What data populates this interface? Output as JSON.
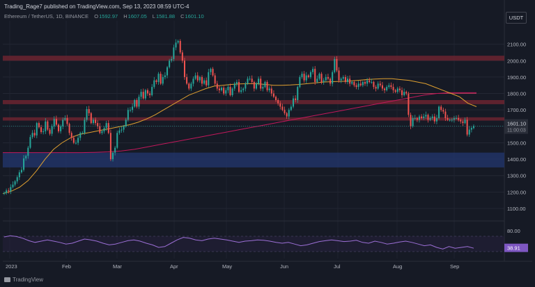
{
  "header": {
    "published": "Trading_Rage7 published on TradingView.com, Sep 13, 2023 08:59 UTC-4",
    "symbol": "Ethereum / TetherUS, 1D, BINANCE",
    "ohlc": [
      {
        "k": "O",
        "v": "1592.97"
      },
      {
        "k": "H",
        "v": "1607.05"
      },
      {
        "k": "L",
        "v": "1581.88"
      },
      {
        "k": "C",
        "v": "1601.10"
      }
    ],
    "currency": "USDT"
  },
  "chart_data": {
    "type": "candlestick",
    "price_axis": {
      "ylim": [
        1100,
        2200
      ],
      "ticks": [
        "2100.00",
        "2000.00",
        "1900.00",
        "1800.00",
        "1700.00",
        "1600.00",
        "1500.00",
        "1400.00",
        "1300.00",
        "1200.00",
        "1100.00"
      ]
    },
    "x_labels": [
      "2023",
      "Feb",
      "Mar",
      "Apr",
      "May",
      "Jun",
      "Jul",
      "Aug",
      "Sep"
    ],
    "last_price_label": "1601.10",
    "countdown_label": "11:00:03",
    "zones": [
      {
        "kind": "resistance",
        "from": 2000,
        "to": 2030,
        "color": "#6b2530"
      },
      {
        "kind": "resistance",
        "from": 1735,
        "to": 1760,
        "color": "#6b2530"
      },
      {
        "kind": "resistance",
        "from": 1635,
        "to": 1655,
        "color": "#6b2530"
      },
      {
        "kind": "support",
        "from": 1350,
        "to": 1440,
        "color": "#213466"
      }
    ],
    "level_line": {
      "value": 1800,
      "from_month": "Aug"
    },
    "candles_close_series": [
      [
        1195,
        1210,
        1205,
        1230,
        1245,
        1265,
        1290,
        1320,
        1335,
        1405,
        1420,
        1470,
        1535,
        1560,
        1545,
        1620,
        1595,
        1565,
        1570,
        1630,
        1580,
        1555,
        1600,
        1645,
        1610,
        1570,
        1600,
        1640,
        1650,
        1615,
        1560,
        1530,
        1500,
        1500,
        1530,
        1560,
        1560,
        1640,
        1705,
        1680,
        1620,
        1640,
        1620,
        1600,
        1560,
        1570,
        1590,
        1620,
        1560,
        1400,
        1440,
        1470,
        1560,
        1575,
        1580,
        1600,
        1640,
        1700,
        1700,
        1720,
        1760,
        1720,
        1780,
        1810,
        1770,
        1820,
        1800,
        1790,
        1840,
        1880,
        1870,
        1920,
        1860,
        1900,
        1910,
        1960,
        2000,
        2010,
        2080,
        2110,
        2120,
        2050,
        2000,
        1900,
        1860,
        1830,
        1860,
        1890,
        1910,
        1880,
        1900,
        1860,
        1880,
        1850,
        1930,
        1950,
        1910,
        1860,
        1830,
        1820,
        1835,
        1800,
        1820,
        1840,
        1790,
        1830,
        1860,
        1870,
        1810,
        1820,
        1830,
        1860,
        1890,
        1890,
        1870,
        1830,
        1860,
        1890,
        1830,
        1840,
        1870,
        1820,
        1830,
        1800,
        1780,
        1760,
        1740,
        1720,
        1700,
        1680,
        1660,
        1700,
        1720,
        1770,
        1760,
        1840,
        1900,
        1920,
        1880,
        1910,
        1900,
        1930,
        1950,
        1870,
        1890,
        1920,
        1870,
        1880,
        1900,
        1890,
        1860,
        1930,
        2010,
        1940,
        1880,
        1890,
        1900,
        1870,
        1890,
        1860,
        1870,
        1850,
        1840,
        1860,
        1850,
        1870,
        1860,
        1880,
        1870,
        1870,
        1840,
        1830,
        1860,
        1850,
        1830,
        1820,
        1840,
        1850,
        1840,
        1820,
        1810,
        1830,
        1820,
        1790,
        1810,
        1800,
        1670,
        1600,
        1650,
        1650,
        1640,
        1660,
        1650,
        1660,
        1670,
        1640,
        1650,
        1660,
        1630,
        1650,
        1720,
        1700,
        1690,
        1650,
        1640,
        1640,
        1640,
        1650,
        1650,
        1640,
        1630,
        1620,
        1640,
        1550,
        1580,
        1590,
        1601
      ]
    ],
    "ma50_series": [
      [
        1190,
        1205,
        1230,
        1270,
        1330,
        1400,
        1460,
        1500,
        1530,
        1550,
        1560,
        1570,
        1580,
        1590,
        1600,
        1610,
        1625,
        1645,
        1670,
        1700,
        1730,
        1760,
        1790,
        1810,
        1830,
        1845,
        1850,
        1855,
        1858,
        1860,
        1860,
        1855,
        1850,
        1850,
        1852,
        1855,
        1860,
        1865,
        1870,
        1872,
        1874,
        1876,
        1880,
        1885,
        1888,
        1890,
        1890,
        1885,
        1880,
        1870,
        1860,
        1840,
        1820,
        1800,
        1780,
        1740,
        1720
      ]
    ],
    "ma200_series": [
      [
        1440,
        1440,
        1440,
        1440,
        1440,
        1440,
        1440,
        1442,
        1445,
        1450,
        1460,
        1475,
        1490,
        1505,
        1520,
        1535,
        1550,
        1565,
        1580,
        1595,
        1610,
        1625,
        1640,
        1655,
        1670,
        1685,
        1700,
        1715,
        1730,
        1745,
        1760,
        1775,
        1790,
        1800,
        1805,
        1805,
        1805
      ]
    ],
    "rsi": {
      "ticks": [
        "80.00"
      ],
      "value_label": "38.91",
      "series": [
        [
          65,
          68,
          66,
          62,
          56,
          52,
          55,
          58,
          55,
          52,
          48,
          50,
          55,
          60,
          58,
          55,
          50,
          46,
          48,
          52,
          56,
          58,
          55,
          50,
          46,
          40,
          42,
          50,
          58,
          64,
          62,
          58,
          56,
          60,
          62,
          60,
          58,
          55,
          52,
          55,
          56,
          58,
          57,
          55,
          52,
          50,
          52,
          48,
          44,
          46,
          50,
          54,
          56,
          58,
          56,
          54,
          55,
          57,
          52,
          50,
          55,
          52,
          48,
          50,
          53,
          55,
          52,
          48,
          44,
          46,
          40,
          36,
          42,
          38,
          40,
          42,
          38
        ]
      ]
    }
  },
  "footer": {
    "brand": "TradingView"
  }
}
